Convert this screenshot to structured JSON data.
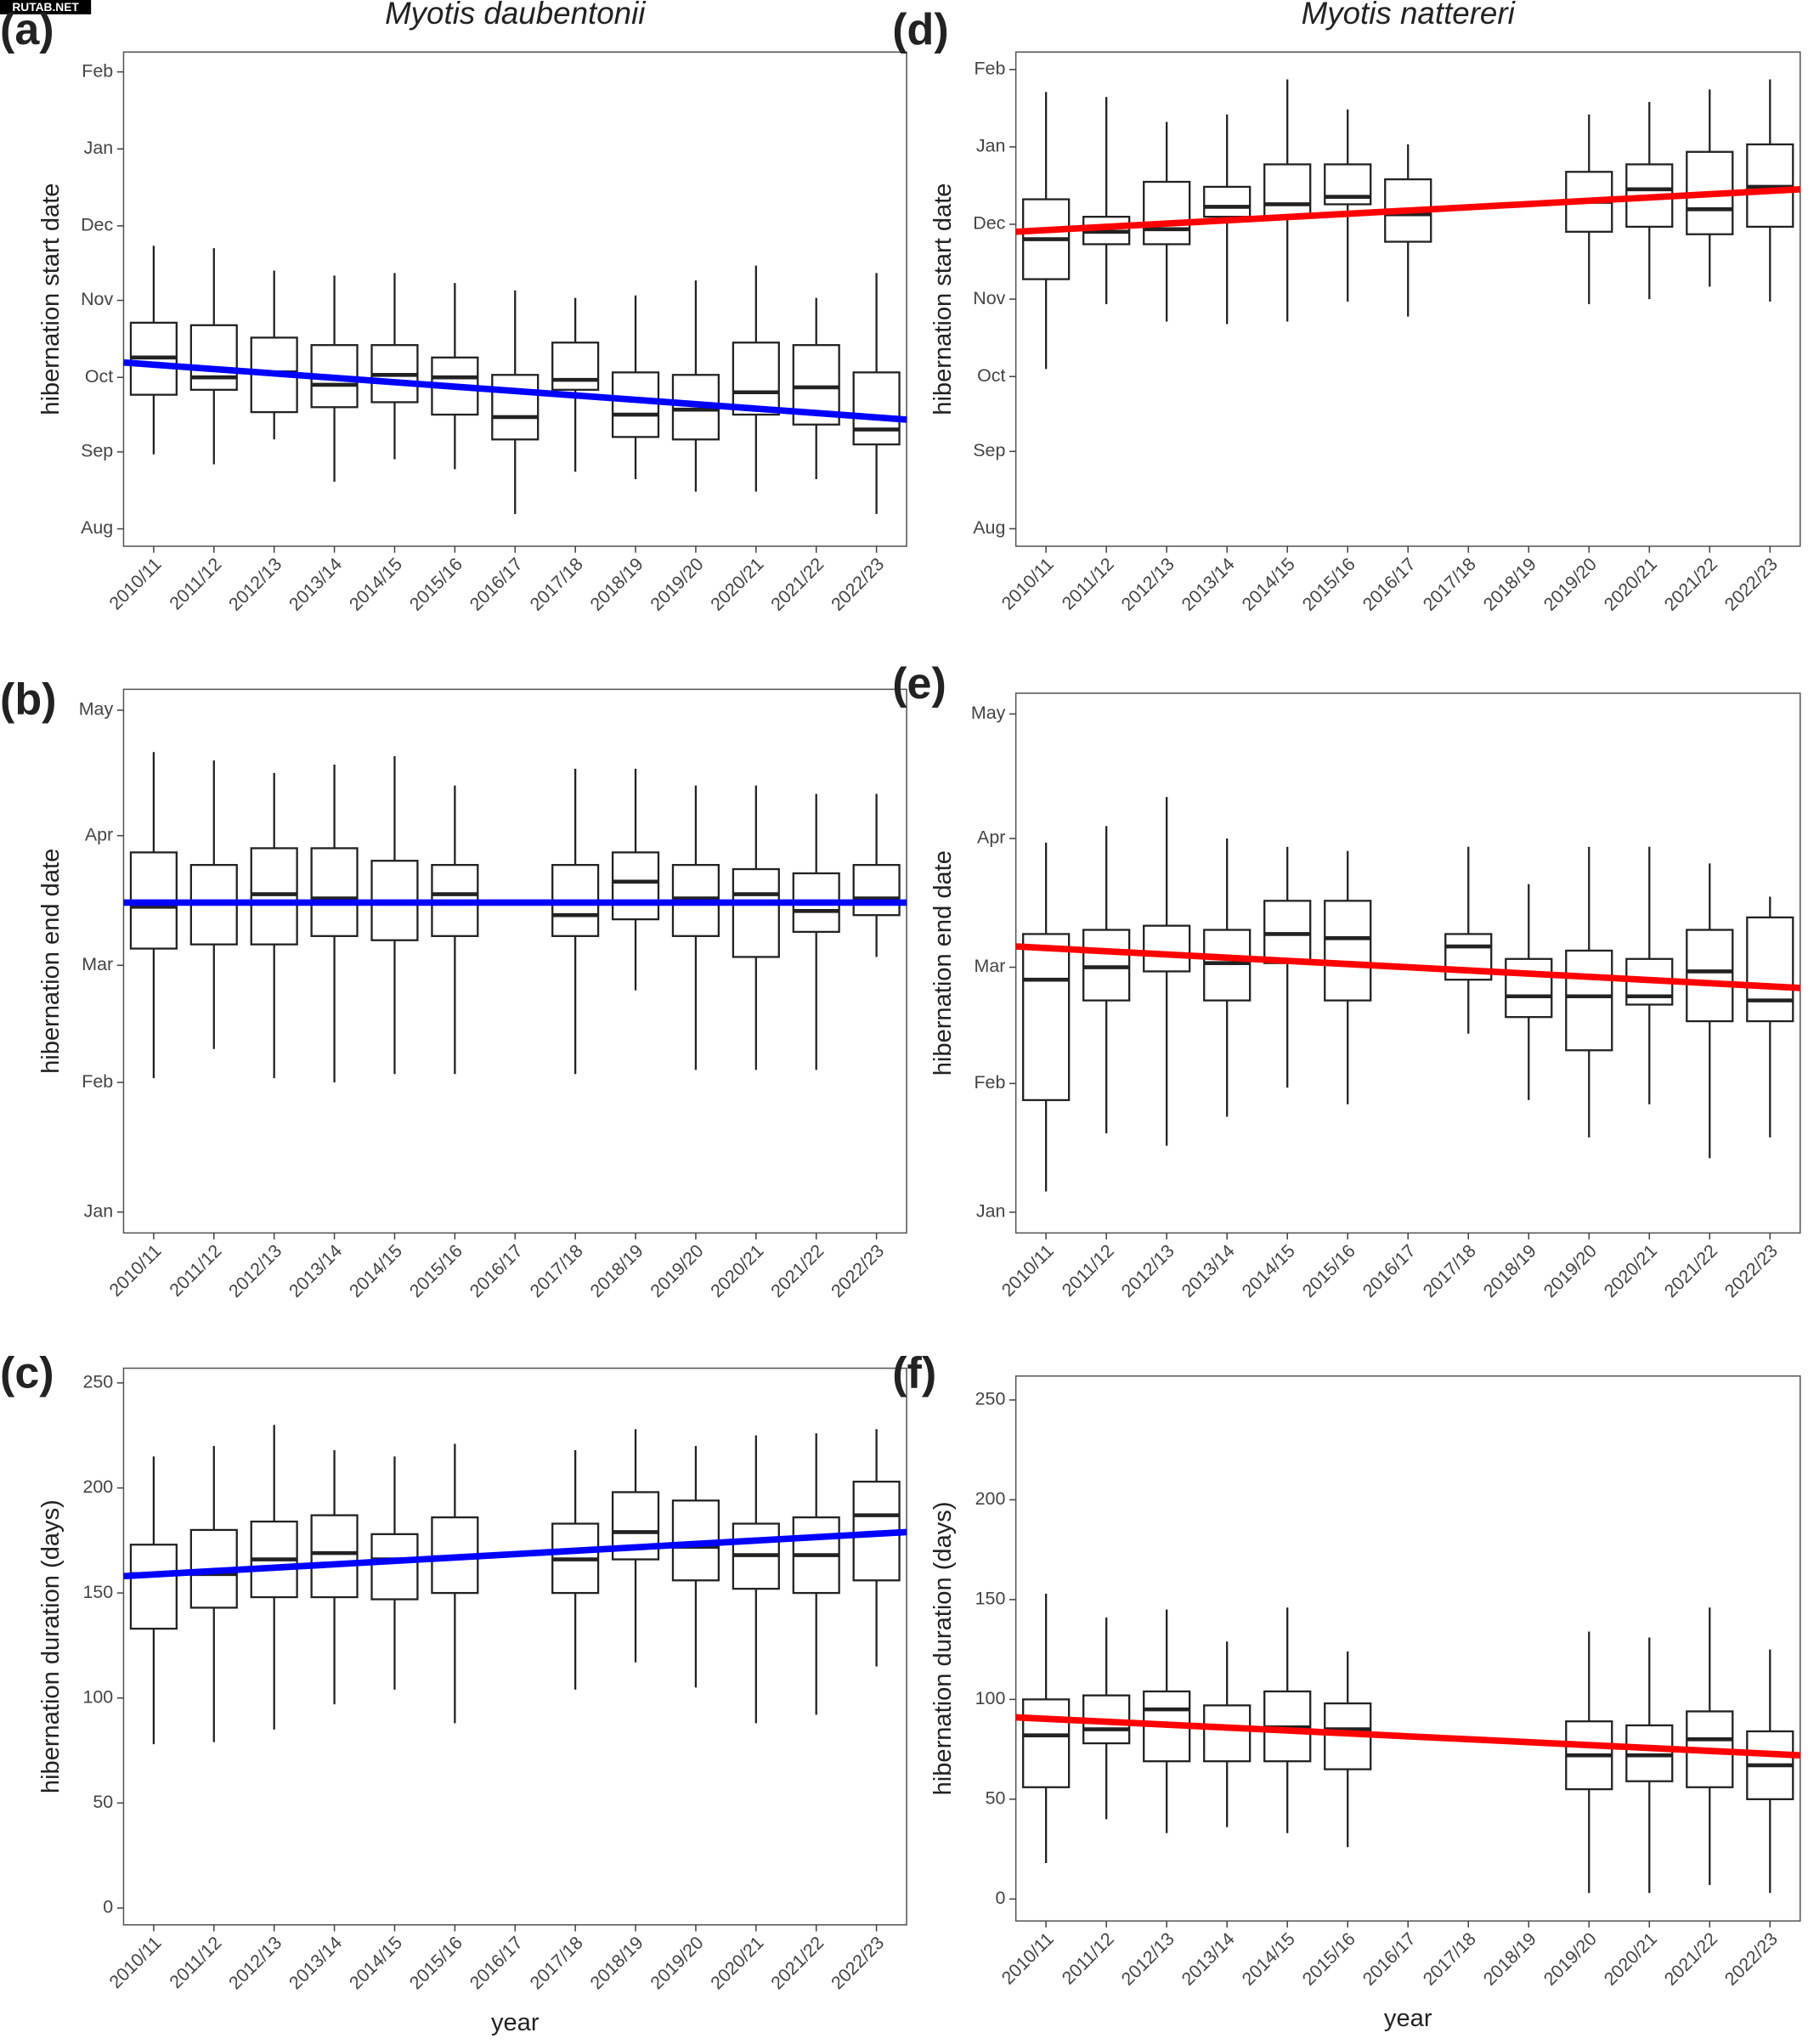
{
  "watermark": "RUTAB.NET",
  "chart_data": [
    {
      "type": "box",
      "panel_label": "(a)",
      "title": "Myotis daubentonii",
      "y_label": "hibernation start date",
      "categories": [
        "2010/11",
        "2011/12",
        "2012/13",
        "2013/14",
        "2014/15",
        "2015/16",
        "2016/17",
        "2017/18",
        "2018/19",
        "2019/20",
        "2020/21",
        "2021/22",
        "2022/23"
      ],
      "low": [
        30,
        26,
        36,
        19,
        28,
        24,
        6,
        23,
        20,
        15,
        15,
        20,
        6
      ],
      "q1": [
        54,
        56,
        47,
        49,
        51,
        46,
        36,
        56,
        37,
        36,
        46,
        42,
        34
      ],
      "median": [
        69,
        61,
        63,
        58,
        62,
        61,
        45,
        60,
        46,
        48,
        55,
        57,
        40
      ],
      "q3": [
        83,
        82,
        77,
        74,
        74,
        69,
        62,
        75,
        63,
        62,
        75,
        74,
        63
      ],
      "high": [
        114,
        113,
        104,
        102,
        103,
        99,
        96,
        93,
        94,
        100,
        106,
        93,
        103
      ],
      "color": "#222222",
      "trend": {
        "color": "#0000ff",
        "values": [
          67,
          44
        ]
      },
      "ylim": [
        -7,
        192
      ],
      "yticks": [
        {
          "value": 0,
          "label": "Aug"
        },
        {
          "value": 31,
          "label": "Sep"
        },
        {
          "value": 61,
          "label": "Oct"
        },
        {
          "value": 92,
          "label": "Nov"
        },
        {
          "value": 122,
          "label": "Dec"
        },
        {
          "value": 153,
          "label": "Jan"
        },
        {
          "value": 184,
          "label": "Feb"
        }
      ]
    },
    {
      "type": "box",
      "panel_label": "(b)",
      "y_label": "hibernation end date",
      "categories": [
        "2010/11",
        "2011/12",
        "2012/13",
        "2013/14",
        "2014/15",
        "2015/16",
        "2016/17",
        "2017/18",
        "2018/19",
        "2019/20",
        "2020/21",
        "2021/22",
        "2022/23"
      ],
      "low": [
        32,
        39,
        32,
        31,
        33,
        33,
        null,
        33,
        53,
        34,
        34,
        34,
        61
      ],
      "q1": [
        63,
        64,
        64,
        66,
        65,
        66,
        null,
        66,
        70,
        66,
        61,
        67,
        71
      ],
      "median": [
        73,
        74,
        76,
        75,
        74,
        76,
        null,
        71,
        79,
        75,
        76,
        72,
        75
      ],
      "q3": [
        86,
        83,
        87,
        87,
        84,
        83,
        null,
        83,
        86,
        83,
        82,
        81,
        83
      ],
      "high": [
        110,
        108,
        105,
        107,
        109,
        102,
        null,
        106,
        106,
        102,
        102,
        100,
        100
      ],
      "color": "#222222",
      "trend": {
        "color": "#0000ff",
        "values": [
          74,
          74
        ]
      },
      "ylim": [
        -5,
        125
      ],
      "yticks": [
        {
          "value": 0,
          "label": "Jan"
        },
        {
          "value": 31,
          "label": "Feb"
        },
        {
          "value": 59,
          "label": "Mar"
        },
        {
          "value": 90,
          "label": "Apr"
        },
        {
          "value": 120,
          "label": "May"
        }
      ]
    },
    {
      "type": "box",
      "panel_label": "(c)",
      "y_label": "hibernation duration (days)",
      "x_label": "year",
      "categories": [
        "2010/11",
        "2011/12",
        "2012/13",
        "2013/14",
        "2014/15",
        "2015/16",
        "2016/17",
        "2017/18",
        "2018/19",
        "2019/20",
        "2020/21",
        "2021/22",
        "2022/23"
      ],
      "low": [
        78,
        79,
        85,
        97,
        104,
        88,
        null,
        104,
        117,
        105,
        88,
        92,
        115
      ],
      "q1": [
        133,
        143,
        148,
        148,
        147,
        150,
        null,
        150,
        166,
        156,
        152,
        150,
        156
      ],
      "median": [
        159,
        159,
        166,
        169,
        166,
        167,
        null,
        166,
        179,
        172,
        168,
        168,
        187
      ],
      "q3": [
        173,
        180,
        184,
        187,
        178,
        186,
        null,
        183,
        198,
        194,
        183,
        186,
        203
      ],
      "high": [
        215,
        220,
        230,
        218,
        215,
        221,
        null,
        218,
        228,
        220,
        225,
        226,
        228
      ],
      "color": "#222222",
      "trend": {
        "color": "#0000ff",
        "values": [
          158,
          179
        ]
      },
      "ylim": [
        -8,
        257
      ],
      "yticks": [
        0,
        50,
        100,
        150,
        200,
        250
      ]
    },
    {
      "type": "box",
      "panel_label": "(d)",
      "title": "Myotis nattereri",
      "y_label": "hibernation start date",
      "categories": [
        "2010/11",
        "2011/12",
        "2012/13",
        "2013/14",
        "2014/15",
        "2015/16",
        "2016/17",
        "2017/18",
        "2018/19",
        "2019/20",
        "2020/21",
        "2021/22",
        "2022/23"
      ],
      "low": [
        64,
        90,
        83,
        82,
        83,
        91,
        85,
        null,
        null,
        90,
        92,
        97,
        91
      ],
      "q1": [
        100,
        114,
        114,
        125,
        125,
        130,
        115,
        null,
        null,
        119,
        121,
        118,
        121
      ],
      "median": [
        116,
        119,
        120,
        129,
        130,
        133,
        126,
        null,
        null,
        131,
        136,
        128,
        137
      ],
      "q3": [
        132,
        125,
        139,
        137,
        146,
        146,
        140,
        null,
        null,
        143,
        146,
        151,
        154
      ],
      "high": [
        175,
        173,
        163,
        166,
        180,
        168,
        154,
        null,
        null,
        166,
        171,
        176,
        180
      ],
      "color": "#222222",
      "trend": {
        "color": "#ff0000",
        "values": [
          119,
          136
        ]
      },
      "ylim": [
        -7,
        191
      ],
      "yticks": [
        {
          "value": 0,
          "label": "Aug"
        },
        {
          "value": 31,
          "label": "Sep"
        },
        {
          "value": 61,
          "label": "Oct"
        },
        {
          "value": 92,
          "label": "Nov"
        },
        {
          "value": 122,
          "label": "Dec"
        },
        {
          "value": 153,
          "label": "Jan"
        },
        {
          "value": 184,
          "label": "Feb"
        }
      ]
    },
    {
      "type": "box",
      "panel_label": "(e)",
      "y_label": "hibernation end date",
      "categories": [
        "2010/11",
        "2011/12",
        "2012/13",
        "2013/14",
        "2014/15",
        "2015/16",
        "2016/17",
        "2017/18",
        "2018/19",
        "2019/20",
        "2020/21",
        "2021/22",
        "2022/23"
      ],
      "low": [
        5,
        19,
        16,
        23,
        30,
        26,
        null,
        43,
        27,
        18,
        26,
        13,
        18
      ],
      "q1": [
        27,
        51,
        58,
        51,
        60,
        51,
        null,
        56,
        47,
        39,
        50,
        46,
        46
      ],
      "median": [
        56,
        59,
        62,
        60,
        67,
        66,
        null,
        64,
        52,
        52,
        52,
        58,
        51
      ],
      "q3": [
        67,
        68,
        69,
        68,
        75,
        75,
        null,
        67,
        61,
        63,
        61,
        68,
        71
      ],
      "high": [
        89,
        93,
        100,
        90,
        88,
        87,
        null,
        88,
        79,
        88,
        88,
        84,
        76
      ],
      "color": "#222222",
      "trend": {
        "color": "#ff0000",
        "values": [
          64,
          54
        ]
      },
      "ylim": [
        -5,
        125
      ],
      "yticks": [
        {
          "value": 0,
          "label": "Jan"
        },
        {
          "value": 31,
          "label": "Feb"
        },
        {
          "value": 59,
          "label": "Mar"
        },
        {
          "value": 90,
          "label": "Apr"
        },
        {
          "value": 120,
          "label": "May"
        }
      ]
    },
    {
      "type": "box",
      "panel_label": "(f)",
      "y_label": "hibernation duration (days)",
      "x_label": "year",
      "categories": [
        "2010/11",
        "2011/12",
        "2012/13",
        "2013/14",
        "2014/15",
        "2015/16",
        "2016/17",
        "2017/18",
        "2018/19",
        "2019/20",
        "2020/21",
        "2021/22",
        "2022/23"
      ],
      "low": [
        18,
        40,
        33,
        36,
        33,
        26,
        null,
        null,
        null,
        3,
        3,
        7,
        3
      ],
      "q1": [
        56,
        78,
        69,
        69,
        69,
        65,
        null,
        null,
        null,
        55,
        59,
        56,
        50
      ],
      "median": [
        82,
        85,
        95,
        86,
        86,
        85,
        null,
        null,
        null,
        72,
        72,
        80,
        67
      ],
      "q3": [
        100,
        102,
        104,
        97,
        104,
        98,
        null,
        null,
        null,
        89,
        87,
        94,
        84
      ],
      "high": [
        153,
        141,
        145,
        129,
        146,
        124,
        null,
        null,
        null,
        134,
        131,
        146,
        125
      ],
      "color": "#222222",
      "trend": {
        "color": "#ff0000",
        "values": [
          91,
          72
        ]
      },
      "ylim": [
        -11,
        262
      ],
      "yticks": [
        0,
        50,
        100,
        150,
        200,
        250
      ]
    }
  ]
}
